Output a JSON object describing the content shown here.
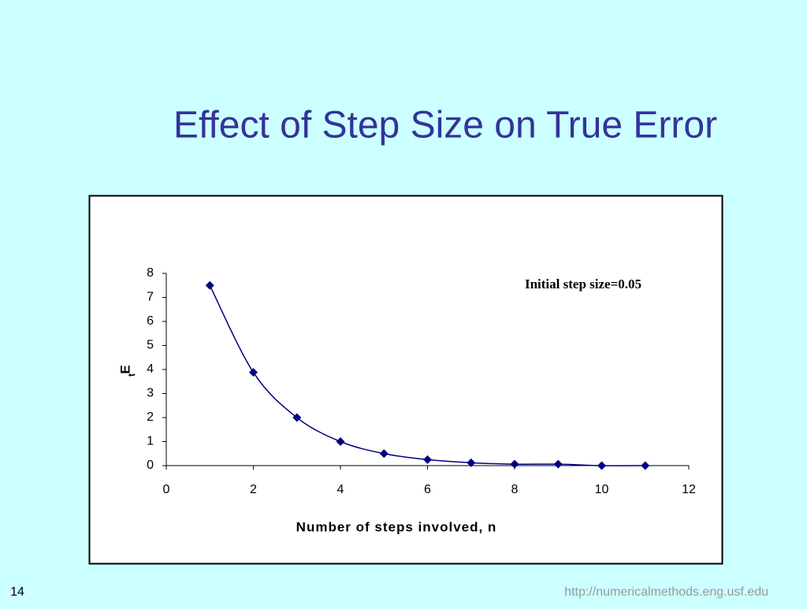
{
  "chart_data": {
    "type": "line",
    "title": "Effect of Step Size on True Error",
    "annotation": "Initial step size=0.05",
    "x_label": "Number of steps involved, n",
    "y_label": "E",
    "y_label_subscript": "t",
    "x": [
      1,
      2,
      3,
      4,
      5,
      6,
      7,
      8,
      9,
      10,
      11
    ],
    "series": [
      {
        "color": "#000080",
        "values": [
          7.5,
          3.88,
          2.0,
          1.0,
          0.5,
          0.25,
          0.12,
          0.06,
          0.06,
          0.0,
          0.0
        ]
      }
    ],
    "xlim": [
      0,
      12
    ],
    "xticks": [
      0,
      2,
      4,
      6,
      8,
      10,
      12
    ],
    "ylim": [
      0,
      8
    ],
    "yticks": [
      0,
      1,
      2,
      3,
      4,
      5,
      6,
      7,
      8
    ],
    "grid": false
  },
  "footer": {
    "page_number": "14",
    "url": "http://numericalmethods.eng.usf.edu"
  }
}
